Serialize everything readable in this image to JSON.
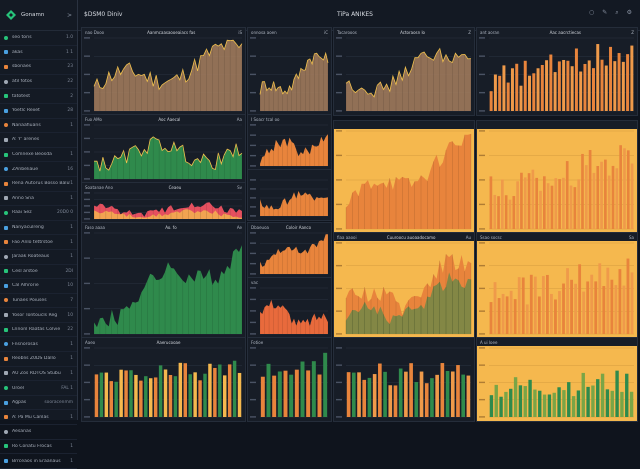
{
  "app": {
    "brand": "Gonamn",
    "sidebar_chevron": ">",
    "title_left": "$DSM0 Diniv",
    "title_right": "TiPa ANIKES",
    "actions": [
      "○",
      "✎",
      "⌕",
      "⚙"
    ]
  },
  "colors": {
    "bg": "#0f141d",
    "orange": "#e8843c",
    "yellow": "#f5b84e",
    "green": "#2f8a4c",
    "red": "#e5505f",
    "tan": "#9e7a5c",
    "grid": "#2a3240",
    "accent": "#27c47a"
  },
  "sidebar": {
    "items": [
      {
        "label": "seo toris",
        "count": "1.0"
      },
      {
        "label": "akas",
        "count": "1 1"
      },
      {
        "label": "sbonaes",
        "count": "23"
      },
      {
        "label": "atil fotos",
        "count": "22"
      },
      {
        "label": "tatotest",
        "count": "2"
      },
      {
        "label": "Yoetlc Rexet",
        "count": "28"
      },
      {
        "label": "Nanaafiuans",
        "count": "1"
      },
      {
        "label": "A: Y' arenes",
        "count": ""
      },
      {
        "label": "Comnexe Beosda",
        "count": "1"
      },
      {
        "label": "ZAnbeliaue",
        "count": "16"
      },
      {
        "label": "Rena Autorus Bosso Balut",
        "count": "1"
      },
      {
        "label": "Anno Sna",
        "count": "1"
      },
      {
        "label": "Raai Sez",
        "count": "20D0 0"
      },
      {
        "label": "Nanyaculreng",
        "count": "1"
      },
      {
        "label": "Fao Anlo tettrstoe",
        "count": "1"
      },
      {
        "label": "Jaraak Roateaus",
        "count": "1"
      },
      {
        "label": "Cesl arstoe",
        "count": "2DI"
      },
      {
        "label": "Cal Alhrorie",
        "count": "10"
      },
      {
        "label": "Tunaes Poiuses",
        "count": "7"
      },
      {
        "label": "Yosor Tontoucls Reg",
        "count": "10"
      },
      {
        "label": "Lnnonl Raatas Colvie",
        "count": "22"
      },
      {
        "label": "Fnsnorosas",
        "count": "1"
      },
      {
        "label": "Reoblis Z0DS Dallo",
        "count": "1"
      },
      {
        "label": "AU Zos RDTOS Stubu",
        "count": "1"
      },
      {
        "label": "Uroel",
        "count": "FAL 1"
      },
      {
        "label": "Agpas",
        "count": "sooracenmm"
      },
      {
        "label": "A: Pa Mu Canlas",
        "count": "1"
      },
      {
        "label": "Aesanas",
        "count": ""
      },
      {
        "label": "Ro Conatu Frocas",
        "count": "1"
      },
      {
        "label": "Brrceaos in Eraanaus",
        "count": "1"
      }
    ]
  },
  "panels": [
    {
      "id": "p1",
      "header": {
        "left": "nao Dooo",
        "mid": "Aanmcaasaooeaiacs fas",
        "right": "iS"
      }
    },
    {
      "id": "p2",
      "header": {
        "left": "onnosa aoen",
        "mid": "",
        "right": "iC"
      }
    },
    {
      "id": "p3",
      "header": {
        "left": "Tacarooos",
        "mid": "Actoraosn lo",
        "right": "Z"
      }
    },
    {
      "id": "p4",
      "header": {
        "left": "ant aoran",
        "mid": "Aac aacrctiecas",
        "right": "Z"
      }
    },
    {
      "id": "p5",
      "header": {
        "left": "Fuo AMo",
        "mid": "Aoc Aaecal",
        "right": "Aa"
      }
    },
    {
      "id": "p6",
      "header": {
        "left": "I Soacr tcal oo",
        "mid": "",
        "right": ""
      }
    },
    {
      "id": "p7",
      "header": {
        "left": "",
        "mid": "",
        "right": ""
      }
    },
    {
      "id": "p8",
      "header": {
        "left": "",
        "mid": "",
        "right": ""
      }
    },
    {
      "id": "p9",
      "header": {
        "left": "Soatanae Ano",
        "mid": "Ceaeu",
        "right": "Sv"
      }
    },
    {
      "id": "p10",
      "header": {
        "left": "",
        "mid": "",
        "right": ""
      }
    },
    {
      "id": "p11",
      "header": {
        "left": "Faso aaaa",
        "mid": "Ao. fo",
        "right": "Ae"
      }
    },
    {
      "id": "p12",
      "header": {
        "left": "Dbaeuoa",
        "mid": "Coloir Aanco",
        "right": ""
      }
    },
    {
      "id": "p13",
      "header": {
        "left": "vac",
        "mid": "",
        "right": ""
      }
    },
    {
      "id": "p14",
      "header": {
        "left": "fiaa aaooi",
        "mid": "Cuuroocu auoaadocamo",
        "right": "Au"
      }
    },
    {
      "id": "p15",
      "header": {
        "left": "Ssao socsc",
        "mid": "",
        "right": "Sa"
      }
    },
    {
      "id": "p16",
      "header": {
        "left": "Aaeo",
        "mid": "Aaerucooae",
        "right": ""
      }
    },
    {
      "id": "p17",
      "header": {
        "left": "Fotioe",
        "mid": "",
        "right": ""
      }
    },
    {
      "id": "p18",
      "header": {
        "left": "",
        "mid": "",
        "right": ""
      }
    },
    {
      "id": "p19",
      "header": {
        "left": "A ui loee",
        "mid": "",
        "right": ""
      }
    }
  ]
}
